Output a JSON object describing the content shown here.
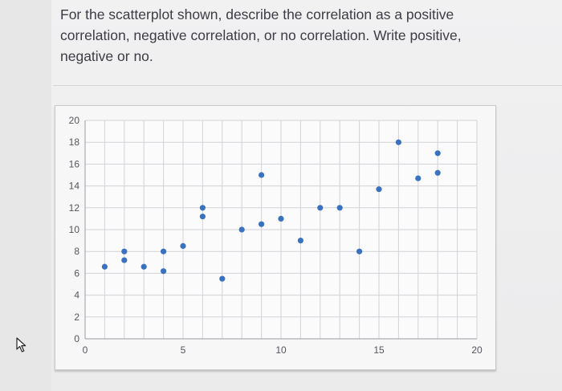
{
  "question": {
    "lines": [
      "For the scatterplot shown, describe the correlation as a positive",
      "correlation, negative correlation, or no correlation. Write positive,",
      "negative or no."
    ]
  },
  "chart_data": {
    "type": "scatter",
    "title": "",
    "xlabel": "",
    "ylabel": "",
    "xlim": [
      0,
      20
    ],
    "ylim": [
      0,
      20
    ],
    "grid": true,
    "x_ticks": [
      "0",
      "5",
      "10",
      "15",
      "20"
    ],
    "y_ticks": [
      "0",
      "2",
      "4",
      "6",
      "8",
      "10",
      "12",
      "14",
      "16",
      "18",
      "20"
    ],
    "point_color": "#3a72c0",
    "points": [
      {
        "x": 1,
        "y": 6.6
      },
      {
        "x": 2,
        "y": 8
      },
      {
        "x": 2,
        "y": 7.2
      },
      {
        "x": 3,
        "y": 6.6
      },
      {
        "x": 4,
        "y": 8
      },
      {
        "x": 4,
        "y": 6.2
      },
      {
        "x": 5,
        "y": 8.5
      },
      {
        "x": 6,
        "y": 12
      },
      {
        "x": 6,
        "y": 11.2
      },
      {
        "x": 7,
        "y": 5.5
      },
      {
        "x": 8,
        "y": 10
      },
      {
        "x": 9,
        "y": 15
      },
      {
        "x": 9,
        "y": 10.5
      },
      {
        "x": 10,
        "y": 11
      },
      {
        "x": 11,
        "y": 9
      },
      {
        "x": 12,
        "y": 12
      },
      {
        "x": 13,
        "y": 12
      },
      {
        "x": 14,
        "y": 8
      },
      {
        "x": 15,
        "y": 13.7
      },
      {
        "x": 16,
        "y": 18
      },
      {
        "x": 17,
        "y": 14.7
      },
      {
        "x": 18,
        "y": 17
      },
      {
        "x": 18,
        "y": 15.2
      }
    ]
  }
}
